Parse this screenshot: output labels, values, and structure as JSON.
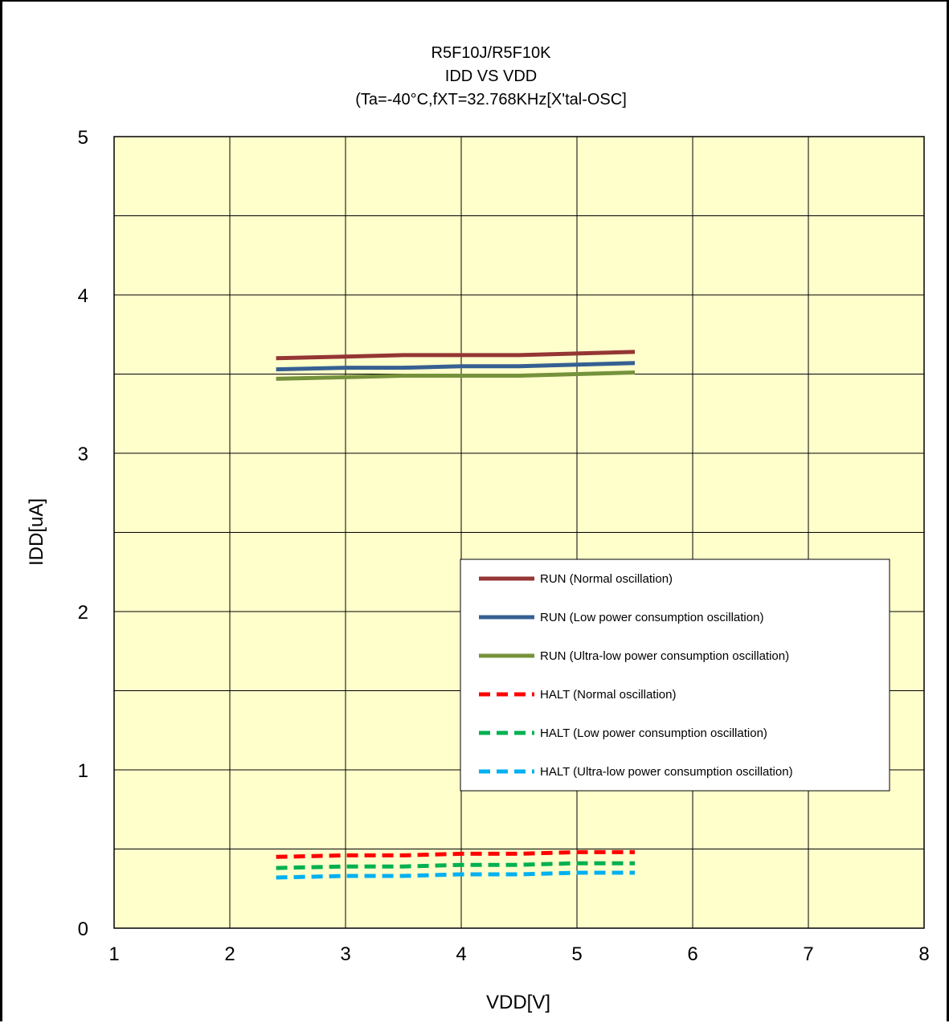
{
  "chart_data": {
    "type": "line",
    "title": [
      "R5F10J/R5F10K",
      "IDD VS VDD",
      "(Ta=-40°C,fXT=32.768KHz[X'tal-OSC]"
    ],
    "xlabel": "VDD[V]",
    "ylabel": "IDD[uA]",
    "xlim": [
      1,
      8
    ],
    "ylim": [
      0,
      5
    ],
    "x_ticks": [
      1,
      2,
      3,
      4,
      5,
      6,
      7,
      8
    ],
    "y_ticks": [
      0,
      1,
      2,
      3,
      4,
      5
    ],
    "grid": true,
    "plot_background": "#FFFFCC",
    "legend_position": "center-right",
    "series": [
      {
        "name": "RUN (Normal oscillation)",
        "color": "#943634",
        "dash": "solid",
        "x": [
          2.4,
          3.0,
          3.5,
          4.0,
          4.5,
          5.0,
          5.5
        ],
        "y": [
          3.6,
          3.61,
          3.62,
          3.62,
          3.62,
          3.63,
          3.64
        ]
      },
      {
        "name": "RUN (Low power consumption oscillation)",
        "color": "#366092",
        "dash": "solid",
        "x": [
          2.4,
          3.0,
          3.5,
          4.0,
          4.5,
          5.0,
          5.5
        ],
        "y": [
          3.53,
          3.54,
          3.54,
          3.55,
          3.55,
          3.56,
          3.57
        ]
      },
      {
        "name": "RUN (Ultra-low power consumption oscillation)",
        "color": "#76923C",
        "dash": "solid",
        "x": [
          2.4,
          3.0,
          3.5,
          4.0,
          4.5,
          5.0,
          5.5
        ],
        "y": [
          3.47,
          3.48,
          3.49,
          3.49,
          3.49,
          3.5,
          3.51
        ]
      },
      {
        "name": "HALT (Normal oscillation)",
        "color": "#FF0000",
        "dash": "dashed",
        "x": [
          2.4,
          3.0,
          3.5,
          4.0,
          4.5,
          5.0,
          5.5
        ],
        "y": [
          0.45,
          0.46,
          0.46,
          0.47,
          0.47,
          0.48,
          0.48
        ]
      },
      {
        "name": "HALT (Low power consumption oscillation)",
        "color": "#00B050",
        "dash": "dashed",
        "x": [
          2.4,
          3.0,
          3.5,
          4.0,
          4.5,
          5.0,
          5.5
        ],
        "y": [
          0.38,
          0.39,
          0.39,
          0.4,
          0.4,
          0.41,
          0.41
        ]
      },
      {
        "name": "HALT (Ultra-low power consumption oscillation)",
        "color": "#00B0F0",
        "dash": "dashed",
        "x": [
          2.4,
          3.0,
          3.5,
          4.0,
          4.5,
          5.0,
          5.5
        ],
        "y": [
          0.32,
          0.33,
          0.33,
          0.34,
          0.34,
          0.35,
          0.35
        ]
      }
    ]
  }
}
